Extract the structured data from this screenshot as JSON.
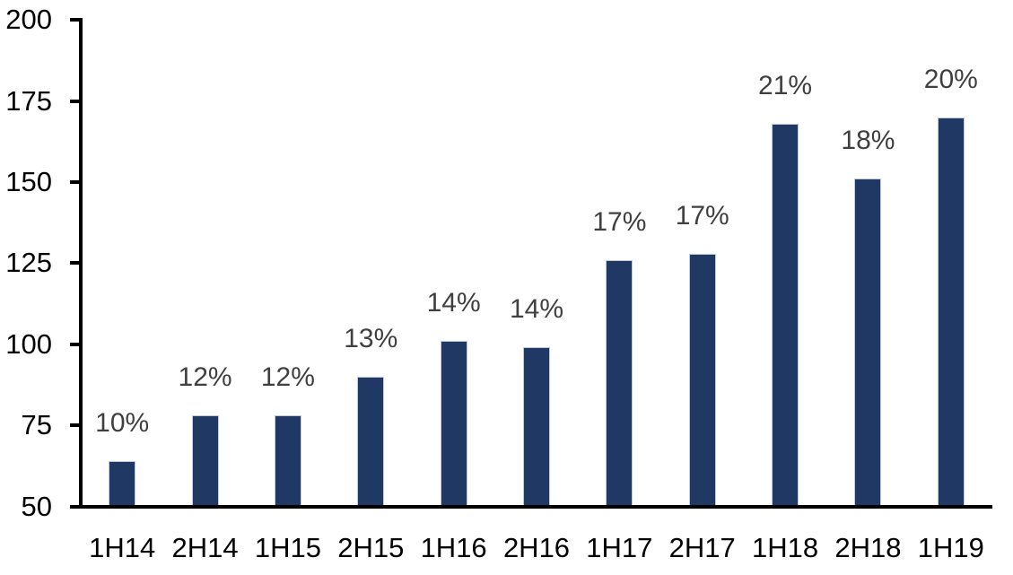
{
  "chart_data": {
    "type": "bar",
    "title": "",
    "xlabel": "",
    "ylabel": "",
    "categories": [
      "1H14",
      "2H14",
      "1H15",
      "2H15",
      "1H16",
      "2H16",
      "1H17",
      "2H17",
      "1H18",
      "2H18",
      "1H19"
    ],
    "values": [
      64,
      78,
      78,
      90,
      101,
      99,
      126,
      128,
      168,
      151,
      170
    ],
    "bar_labels": [
      "10%",
      "12%",
      "12%",
      "13%",
      "14%",
      "14%",
      "17%",
      "17%",
      "21%",
      "18%",
      "20%"
    ],
    "ylim": [
      50,
      200
    ],
    "yticks": [
      200,
      175,
      150,
      125,
      100,
      75,
      50
    ],
    "grid": false,
    "legend": "none",
    "colors": {
      "bar_fill": "#1f3864",
      "bar_border": "#bfcadb",
      "axis_line": "#000000",
      "tick_label": "#000000",
      "category_label": "#000000",
      "data_label": "#404040",
      "background": "#ffffff"
    }
  }
}
